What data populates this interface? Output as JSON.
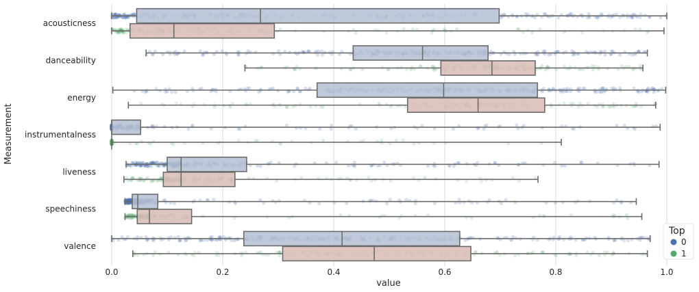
{
  "chart_data": {
    "type": "boxplot",
    "xlabel": "value",
    "ylabel": "Measurement",
    "xlim": [
      0.0,
      1.0
    ],
    "x_ticks": [
      "0.0",
      "0.2",
      "0.4",
      "0.6",
      "0.8",
      "1.0"
    ],
    "grid": "vertical",
    "legend": {
      "title": "Top",
      "placement": "bottom-right",
      "entries": [
        "0",
        "1"
      ]
    },
    "categories": [
      "acousticness",
      "danceability",
      "energy",
      "instrumentalness",
      "liveness",
      "speechiness",
      "valence"
    ],
    "series": [
      {
        "name": "0",
        "point_color": "#4c72b0",
        "box_color": "#b4bfd2",
        "boxes": [
          {
            "min": 0.0,
            "q1": 0.045,
            "median": 0.268,
            "q3": 0.698,
            "max": 1.0
          },
          {
            "min": 0.062,
            "q1": 0.435,
            "median": 0.56,
            "q3": 0.678,
            "max": 0.965
          },
          {
            "min": 0.002,
            "q1": 0.37,
            "median": 0.598,
            "q3": 0.767,
            "max": 0.998
          },
          {
            "min": 0.0,
            "q1": 0.0,
            "median": 0.0,
            "q3": 0.052,
            "max": 0.988
          },
          {
            "min": 0.026,
            "q1": 0.1,
            "median": 0.125,
            "q3": 0.243,
            "max": 0.986
          },
          {
            "min": 0.024,
            "q1": 0.037,
            "median": 0.047,
            "q3": 0.083,
            "max": 0.945
          },
          {
            "min": 0.0,
            "q1": 0.238,
            "median": 0.415,
            "q3": 0.627,
            "max": 0.97
          }
        ]
      },
      {
        "name": "1",
        "point_color": "#55a868",
        "box_color": "#d8bbb5",
        "boxes": [
          {
            "min": 0.0,
            "q1": 0.033,
            "median": 0.112,
            "q3": 0.293,
            "max": 0.995
          },
          {
            "min": 0.24,
            "q1": 0.593,
            "median": 0.685,
            "q3": 0.763,
            "max": 0.957
          },
          {
            "min": 0.03,
            "q1": 0.533,
            "median": 0.66,
            "q3": 0.78,
            "max": 0.98
          },
          {
            "min": 0.0,
            "q1": 0.0,
            "median": 0.0,
            "q3": 0.0,
            "max": 0.81
          },
          {
            "min": 0.022,
            "q1": 0.093,
            "median": 0.125,
            "q3": 0.222,
            "max": 0.768
          },
          {
            "min": 0.024,
            "q1": 0.046,
            "median": 0.068,
            "q3": 0.144,
            "max": 0.955
          },
          {
            "min": 0.038,
            "q1": 0.308,
            "median": 0.473,
            "q3": 0.647,
            "max": 0.965
          }
        ]
      }
    ]
  }
}
